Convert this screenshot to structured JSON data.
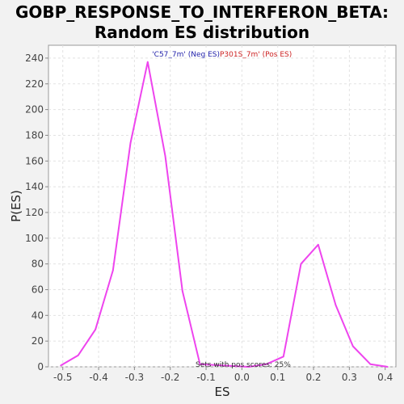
{
  "chart_data": {
    "type": "line",
    "title_line1": "GOBP_RESPONSE_TO_INTERFERON_BETA:",
    "title_line2": "Random ES distribution",
    "xlabel": "ES",
    "ylabel": "P(ES)",
    "xlim": [
      -0.54,
      0.43
    ],
    "ylim": [
      0,
      250
    ],
    "xticks": [
      -0.5,
      -0.4,
      -0.3,
      -0.2,
      -0.1,
      0.0,
      0.1,
      0.2,
      0.3,
      0.4
    ],
    "xtick_labels": [
      "-0.5",
      "-0.4",
      "-0.3",
      "-0.2",
      "-0.1",
      "0.0",
      "0.1",
      "0.2",
      "0.3",
      "0.4"
    ],
    "yticks": [
      0,
      20,
      40,
      60,
      80,
      100,
      120,
      140,
      160,
      180,
      200,
      220,
      240
    ],
    "ytick_labels": [
      "0",
      "20",
      "40",
      "60",
      "80",
      "100",
      "120",
      "140",
      "160",
      "180",
      "200",
      "220",
      "240"
    ],
    "grid": true,
    "series_color": "#ee44ee",
    "x": [
      -0.506,
      -0.457,
      -0.409,
      -0.36,
      -0.311,
      -0.263,
      -0.214,
      -0.166,
      -0.117,
      0.019,
      0.068,
      0.116,
      0.165,
      0.213,
      0.262,
      0.31,
      0.359,
      0.407
    ],
    "y": [
      1,
      9,
      29,
      75,
      174,
      237,
      164,
      59,
      2,
      0,
      2,
      8,
      80,
      95,
      48,
      16,
      2,
      0
    ],
    "legend": [
      {
        "text": "'C57_7m' (Neg ES)",
        "color": "#2222aa"
      },
      {
        "text": "P301S_7m' (Pos ES)",
        "color": "#cc2222"
      }
    ],
    "annotation": "Sets with pos scores: 25%"
  }
}
